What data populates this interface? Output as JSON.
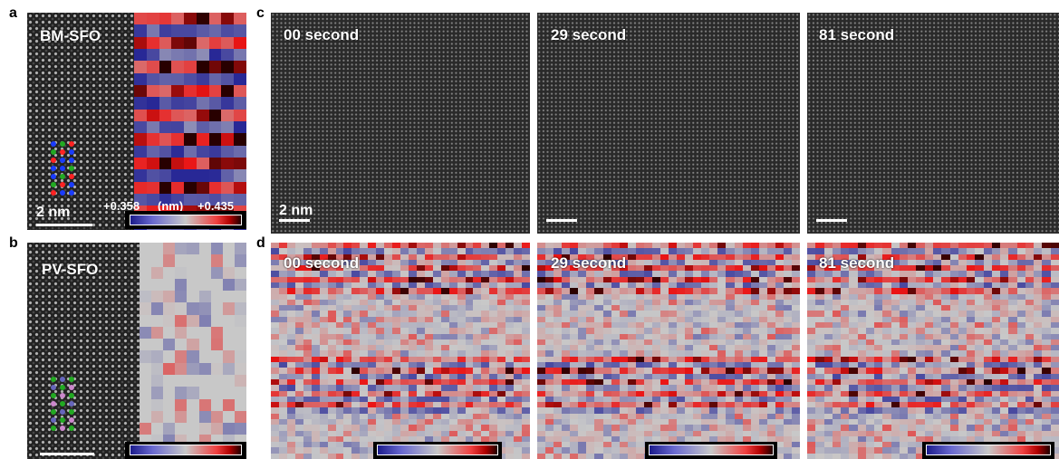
{
  "panel_letters": [
    "a",
    "b",
    "c",
    "d"
  ],
  "panel_a": {
    "label": "BM-SFO",
    "scale_bar": "2 nm",
    "range_low": "+0.358",
    "range_unit": "(nm)",
    "range_high": "+0.435"
  },
  "panel_b": {
    "label": "PV-SFO"
  },
  "panel_c": {
    "frames": [
      "00 second",
      "29 second",
      "81 second"
    ],
    "scale_bar": "2 nm"
  },
  "panel_d": {
    "frames": [
      "00 second",
      "29 second",
      "81 second"
    ]
  },
  "colors": {
    "low": "#1c1c8c",
    "mid": "#c8c8c8",
    "high": "#e01010",
    "extreme": "#200000"
  }
}
